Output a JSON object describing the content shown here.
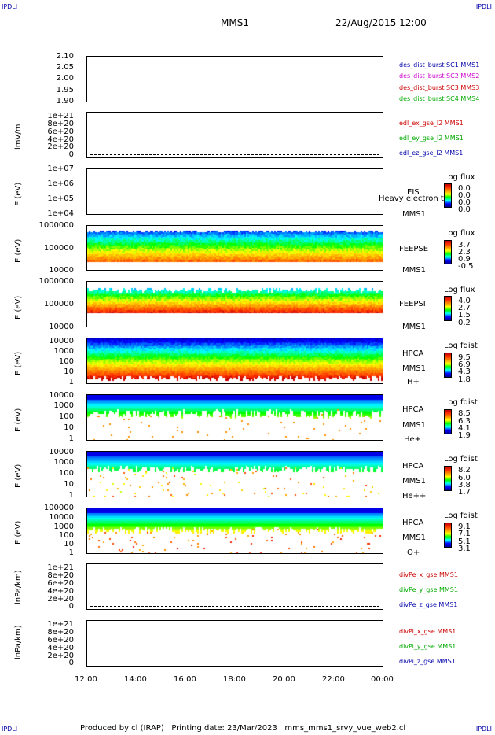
{
  "corners": {
    "tl": "IPDLI",
    "tr": "IPDLI",
    "bl": "IPDLI",
    "br": "IPDLI"
  },
  "header": {
    "spacecraft": "MMS1",
    "datetime": "22/Aug/2015 12:00"
  },
  "footer": {
    "text": "Produced by cl (IRAP)   Printing date: 23/Mar/2023   mms_mms1_srvy_vue_web2.cl"
  },
  "chart_data": [
    {
      "type": "line",
      "ylim": [
        1.9,
        2.1
      ],
      "y_ticks": [
        "2.10",
        "2.05",
        "2.00",
        "1.95",
        "1.90"
      ],
      "ylabel": "",
      "series": [
        {
          "name": "des_dist_burst SC1 MMS1",
          "color": "#0000aa",
          "segments": []
        },
        {
          "name": "des_dist_burst SC2 MMS2",
          "color": "#cc00cc",
          "segments": [
            [
              12.0,
              12.1
            ],
            [
              12.9,
              13.1
            ],
            [
              13.5,
              14.8
            ],
            [
              14.85,
              15.3
            ],
            [
              15.4,
              15.85
            ]
          ],
          "value": 2.0
        },
        {
          "name": "des_dist_burst SC3 MMS3",
          "color": "#cc0000",
          "segments": []
        },
        {
          "name": "des_dist_burst SC4 MMS4",
          "color": "#00aa00",
          "segments": []
        }
      ]
    },
    {
      "type": "line",
      "ylabel": "lmV/m",
      "y_ticks": [
        "1e+21",
        "8e+20",
        "6e+20",
        "4e+20",
        "2e+20",
        "0"
      ],
      "ylim": [
        0,
        1e+21
      ],
      "series": [
        {
          "name": "edl_ex_gse_l2 MMS1",
          "color": "#cc0000"
        },
        {
          "name": "edl_ey_gse_l2 MMS1",
          "color": "#00aa00"
        },
        {
          "name": "edl_ez_gse_l2 MMS1",
          "color": "#0000aa"
        }
      ]
    },
    {
      "type": "heatmap",
      "ylabel": "E (eV)",
      "y_ticks": [
        "1e+07",
        "1e+06",
        "1e+05",
        "1e+04"
      ],
      "instrument": [
        "EIS",
        "Heavy electron to",
        "MMS1"
      ],
      "cbar_title": "Log flux",
      "cbar_values": [
        "0.0",
        "0.0",
        "0.0",
        "0.0"
      ]
    },
    {
      "type": "heatmap",
      "ylabel": "E (eV)",
      "y_ticks": [
        "1000000",
        "100000",
        "10000"
      ],
      "instrument": [
        "FEEPSE",
        "MMS1"
      ],
      "cbar_title": "Log flux",
      "cbar_values": [
        "3.7",
        "2.3",
        "0.9",
        "-0.5"
      ]
    },
    {
      "type": "heatmap",
      "ylabel": "E (eV)",
      "y_ticks": [
        "1000000",
        "100000",
        "10000"
      ],
      "instrument": [
        "FEEPSI",
        "MMS1"
      ],
      "cbar_title": "Log flux",
      "cbar_values": [
        "4.0",
        "2.7",
        "1.5",
        "0.2"
      ]
    },
    {
      "type": "heatmap",
      "ylabel": "E (eV)",
      "y_ticks": [
        "10000",
        "1000",
        "100",
        "10",
        "1"
      ],
      "instrument": [
        "HPCA",
        "MMS1",
        "H+"
      ],
      "cbar_title": "Log fdist",
      "cbar_values": [
        "9.5",
        "6.9",
        "4.3",
        "1.8"
      ]
    },
    {
      "type": "heatmap",
      "ylabel": "E (eV)",
      "y_ticks": [
        "10000",
        "1000",
        "100",
        "10",
        "1"
      ],
      "instrument": [
        "HPCA",
        "MMS1",
        "He+"
      ],
      "cbar_title": "Log fdist",
      "cbar_values": [
        "8.5",
        "6.3",
        "4.1",
        "1.9"
      ]
    },
    {
      "type": "heatmap",
      "ylabel": "E (eV)",
      "y_ticks": [
        "10000",
        "1000",
        "100",
        "10",
        "1"
      ],
      "instrument": [
        "HPCA",
        "MMS1",
        "He++"
      ],
      "cbar_title": "Log fdist",
      "cbar_values": [
        "8.2",
        "6.0",
        "3.8",
        "1.7"
      ]
    },
    {
      "type": "heatmap",
      "ylabel": "E (eV)",
      "y_ticks": [
        "100000",
        "10000",
        "1000",
        "100",
        "10",
        "1"
      ],
      "instrument": [
        "HPCA",
        "MMS1",
        "O+"
      ],
      "cbar_title": "Log fdist",
      "cbar_values": [
        "9.1",
        "7.1",
        "5.1",
        "3.1"
      ]
    },
    {
      "type": "line",
      "ylabel": "lnPa/km)",
      "y_ticks": [
        "1e+21",
        "8e+20",
        "6e+20",
        "4e+20",
        "2e+20",
        "0"
      ],
      "series": [
        {
          "name": "divPe_x_gse MMS1",
          "color": "#cc0000"
        },
        {
          "name": "divPe_y_gse MMS1",
          "color": "#00aa00"
        },
        {
          "name": "divPe_z_gse MMS1",
          "color": "#0000aa"
        }
      ]
    },
    {
      "type": "line",
      "ylabel": "lnPa/km)",
      "y_ticks": [
        "1e+21",
        "8e+20",
        "6e+20",
        "4e+20",
        "2e+20",
        "0"
      ],
      "series": [
        {
          "name": "divPi_x_gse MMS1",
          "color": "#cc0000"
        },
        {
          "name": "divPi_y_gse MMS1",
          "color": "#00aa00"
        },
        {
          "name": "divPi_z_gse MMS1",
          "color": "#0000aa"
        }
      ]
    }
  ],
  "x_axis": {
    "ticks": [
      "12:00",
      "14:00",
      "16:00",
      "18:00",
      "20:00",
      "22:00",
      "00:00"
    ],
    "range_hours": [
      12,
      24
    ]
  }
}
